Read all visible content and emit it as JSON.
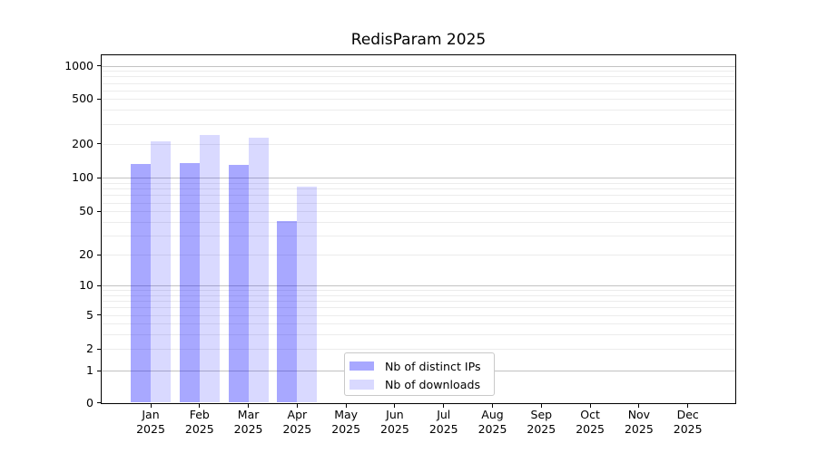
{
  "figure": {
    "background": "#ffffff"
  },
  "chart_data": {
    "type": "bar",
    "title": "RedisParam 2025",
    "xlabel": "",
    "ylabel": "",
    "x_categories": [
      "Jan",
      "Feb",
      "Mar",
      "Apr",
      "May",
      "Jun",
      "Jul",
      "Aug",
      "Sep",
      "Oct",
      "Nov",
      "Dec"
    ],
    "x_year": "2025",
    "series": [
      {
        "name": "Nb of distinct IPs",
        "color": "rgba(0,0,255,0.34)",
        "values": [
          133,
          135,
          129,
          41,
          null,
          null,
          null,
          null,
          null,
          null,
          null,
          null
        ]
      },
      {
        "name": "Nb of downloads",
        "color": "rgba(0,0,255,0.15)",
        "values": [
          211,
          241,
          228,
          84,
          null,
          null,
          null,
          null,
          null,
          null,
          null,
          null
        ]
      }
    ],
    "y_ticks": [
      1000,
      500,
      200,
      100,
      50,
      20,
      10,
      5,
      2,
      1,
      0
    ],
    "y_scale": "log-like, compressed toward zero, with 0 baseline",
    "ylim": [
      0,
      1270
    ],
    "grid": {
      "major_color": "#c2c2c2",
      "minor_color": "#ececec",
      "major_gridlines": [
        1,
        10,
        100,
        1000
      ],
      "minor_gridlines": [
        2,
        3,
        4,
        5,
        6,
        7,
        8,
        9,
        20,
        30,
        40,
        50,
        60,
        70,
        80,
        90,
        200,
        300,
        400,
        500,
        600,
        700,
        800,
        900
      ]
    },
    "legend": {
      "position": "inside lower-center",
      "entries": [
        "Nb of distinct IPs",
        "Nb of downloads"
      ]
    }
  }
}
